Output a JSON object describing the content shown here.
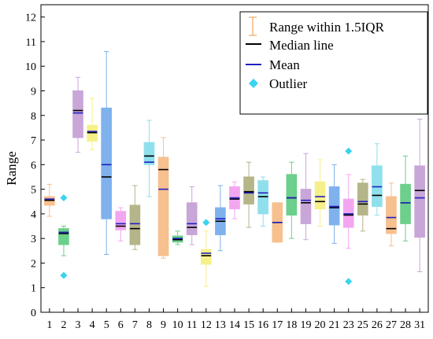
{
  "chart_data": {
    "type": "box",
    "ylabel": "Range",
    "xlabel": "",
    "ylim": [
      0,
      12.5
    ],
    "yticks": [
      0,
      1,
      2,
      3,
      4,
      5,
      6,
      7,
      8,
      9,
      10,
      11,
      12
    ],
    "grid": false,
    "legend_position": "top-right",
    "legend": {
      "range": "Range within 1.5IQR",
      "median": "Median line",
      "mean": "Mean",
      "outlier": "Outlier"
    },
    "colors": {
      "median": "#000000",
      "mean": "#1f1fbf",
      "outlier": "#3ad3f0",
      "legend_range": "#f5b77f"
    },
    "categories": [
      "1",
      "2",
      "3",
      "4",
      "5",
      "6",
      "7",
      "8",
      "9",
      "10",
      "11",
      "12",
      "13",
      "14",
      "15",
      "16",
      "17",
      "18",
      "19",
      "20",
      "21",
      "23",
      "25",
      "26",
      "27",
      "28",
      "31"
    ],
    "boxes": [
      {
        "color": "#f7c08f",
        "whisker_low": 3.9,
        "q1": 4.35,
        "median": 4.55,
        "mean": 4.6,
        "q3": 4.7,
        "whisker_high": 5.2,
        "outliers": []
      },
      {
        "color": "#6ccf8b",
        "whisker_low": 2.3,
        "q1": 2.75,
        "median": 3.2,
        "mean": 3.25,
        "q3": 3.4,
        "whisker_high": 3.5,
        "outliers": [
          1.5,
          4.65
        ]
      },
      {
        "color": "#c9a6d8",
        "whisker_low": 6.5,
        "q1": 7.1,
        "median": 8.2,
        "mean": 8.1,
        "q3": 9.0,
        "whisker_high": 9.55,
        "outliers": []
      },
      {
        "color": "#f5f08a",
        "whisker_low": 6.6,
        "q1": 6.95,
        "median": 7.3,
        "mean": 7.35,
        "q3": 7.6,
        "whisker_high": 8.7,
        "outliers": []
      },
      {
        "color": "#7fb2ec",
        "whisker_low": 2.35,
        "q1": 3.8,
        "median": 5.5,
        "mean": 6.0,
        "q3": 8.3,
        "whisker_high": 10.6,
        "outliers": []
      },
      {
        "color": "#f3a6f0",
        "whisker_low": 2.9,
        "q1": 3.35,
        "median": 3.5,
        "mean": 3.6,
        "q3": 4.1,
        "whisker_high": 4.25,
        "outliers": []
      },
      {
        "color": "#b5b58a",
        "whisker_low": 2.55,
        "q1": 2.75,
        "median": 3.4,
        "mean": 3.6,
        "q3": 4.35,
        "whisker_high": 5.15,
        "outliers": []
      },
      {
        "color": "#8fe0ec",
        "whisker_low": 4.7,
        "q1": 6.0,
        "median": 6.35,
        "mean": 6.1,
        "q3": 6.9,
        "whisker_high": 7.8,
        "outliers": []
      },
      {
        "color": "#f7c08f",
        "whisker_low": 2.2,
        "q1": 2.3,
        "median": 5.8,
        "mean": 5.0,
        "q3": 6.3,
        "whisker_high": 7.1,
        "outliers": []
      },
      {
        "color": "#6ccf8b",
        "whisker_low": 2.75,
        "q1": 2.85,
        "median": 2.95,
        "mean": 3.0,
        "q3": 3.1,
        "whisker_high": 3.3,
        "outliers": []
      },
      {
        "color": "#c9a6d8",
        "whisker_low": 2.75,
        "q1": 3.15,
        "median": 3.45,
        "mean": 3.6,
        "q3": 4.45,
        "whisker_high": 5.1,
        "outliers": []
      },
      {
        "color": "#f5f08a",
        "whisker_low": 1.05,
        "q1": 1.95,
        "median": 2.3,
        "mean": 2.4,
        "q3": 2.55,
        "whisker_high": 3.3,
        "outliers": [
          3.65
        ]
      },
      {
        "color": "#7fb2ec",
        "whisker_low": 2.5,
        "q1": 3.15,
        "median": 3.7,
        "mean": 3.8,
        "q3": 4.25,
        "whisker_high": 5.15,
        "outliers": []
      },
      {
        "color": "#f3a6f0",
        "whisker_low": 3.8,
        "q1": 4.2,
        "median": 4.6,
        "mean": 4.65,
        "q3": 5.1,
        "whisker_high": 5.3,
        "outliers": []
      },
      {
        "color": "#b5b58a",
        "whisker_low": 3.45,
        "q1": 4.4,
        "median": 4.9,
        "mean": 4.85,
        "q3": 5.5,
        "whisker_high": 6.1,
        "outliers": []
      },
      {
        "color": "#8fe0ec",
        "whisker_low": 3.5,
        "q1": 4.0,
        "median": 4.7,
        "mean": 4.85,
        "q3": 5.35,
        "whisker_high": 5.5,
        "outliers": []
      },
      {
        "color": "#f7c08f",
        "whisker_low": 2.85,
        "q1": 2.85,
        "median": 3.65,
        "mean": 3.65,
        "q3": 4.45,
        "whisker_high": 4.45,
        "outliers": []
      },
      {
        "color": "#6ccf8b",
        "whisker_low": 3.0,
        "q1": 3.95,
        "median": 4.65,
        "mean": 4.65,
        "q3": 5.6,
        "whisker_high": 6.1,
        "outliers": []
      },
      {
        "color": "#c9a6d8",
        "whisker_low": 2.95,
        "q1": 3.6,
        "median": 4.45,
        "mean": 4.55,
        "q3": 5.0,
        "whisker_high": 6.45,
        "outliers": []
      },
      {
        "color": "#f5f08a",
        "whisker_low": 3.5,
        "q1": 4.2,
        "median": 4.5,
        "mean": 4.7,
        "q3": 5.3,
        "whisker_high": 6.2,
        "outliers": []
      },
      {
        "color": "#7fb2ec",
        "whisker_low": 2.8,
        "q1": 3.55,
        "median": 4.25,
        "mean": 4.3,
        "q3": 5.1,
        "whisker_high": 6.0,
        "outliers": []
      },
      {
        "color": "#f3a6f0",
        "whisker_low": 2.6,
        "q1": 3.45,
        "median": 3.95,
        "mean": 4.0,
        "q3": 4.6,
        "whisker_high": 5.6,
        "outliers": [
          1.25,
          6.55
        ]
      },
      {
        "color": "#b5b58a",
        "whisker_low": 3.3,
        "q1": 3.95,
        "median": 4.4,
        "mean": 4.5,
        "q3": 5.25,
        "whisker_high": 5.4,
        "outliers": []
      },
      {
        "color": "#8fe0ec",
        "whisker_low": 3.95,
        "q1": 4.3,
        "median": 4.75,
        "mean": 5.1,
        "q3": 5.95,
        "whisker_high": 6.85,
        "outliers": []
      },
      {
        "color": "#f7c08f",
        "whisker_low": 2.7,
        "q1": 3.2,
        "median": 3.4,
        "mean": 3.85,
        "q3": 4.7,
        "whisker_high": 5.25,
        "outliers": []
      },
      {
        "color": "#6ccf8b",
        "whisker_low": 2.9,
        "q1": 3.6,
        "median": 4.45,
        "mean": 4.45,
        "q3": 5.2,
        "whisker_high": 6.35,
        "outliers": []
      },
      {
        "color": "#c9a6d8",
        "whisker_low": 1.65,
        "q1": 3.05,
        "median": 4.95,
        "mean": 4.65,
        "q3": 5.95,
        "whisker_high": 7.85,
        "outliers": []
      }
    ]
  }
}
